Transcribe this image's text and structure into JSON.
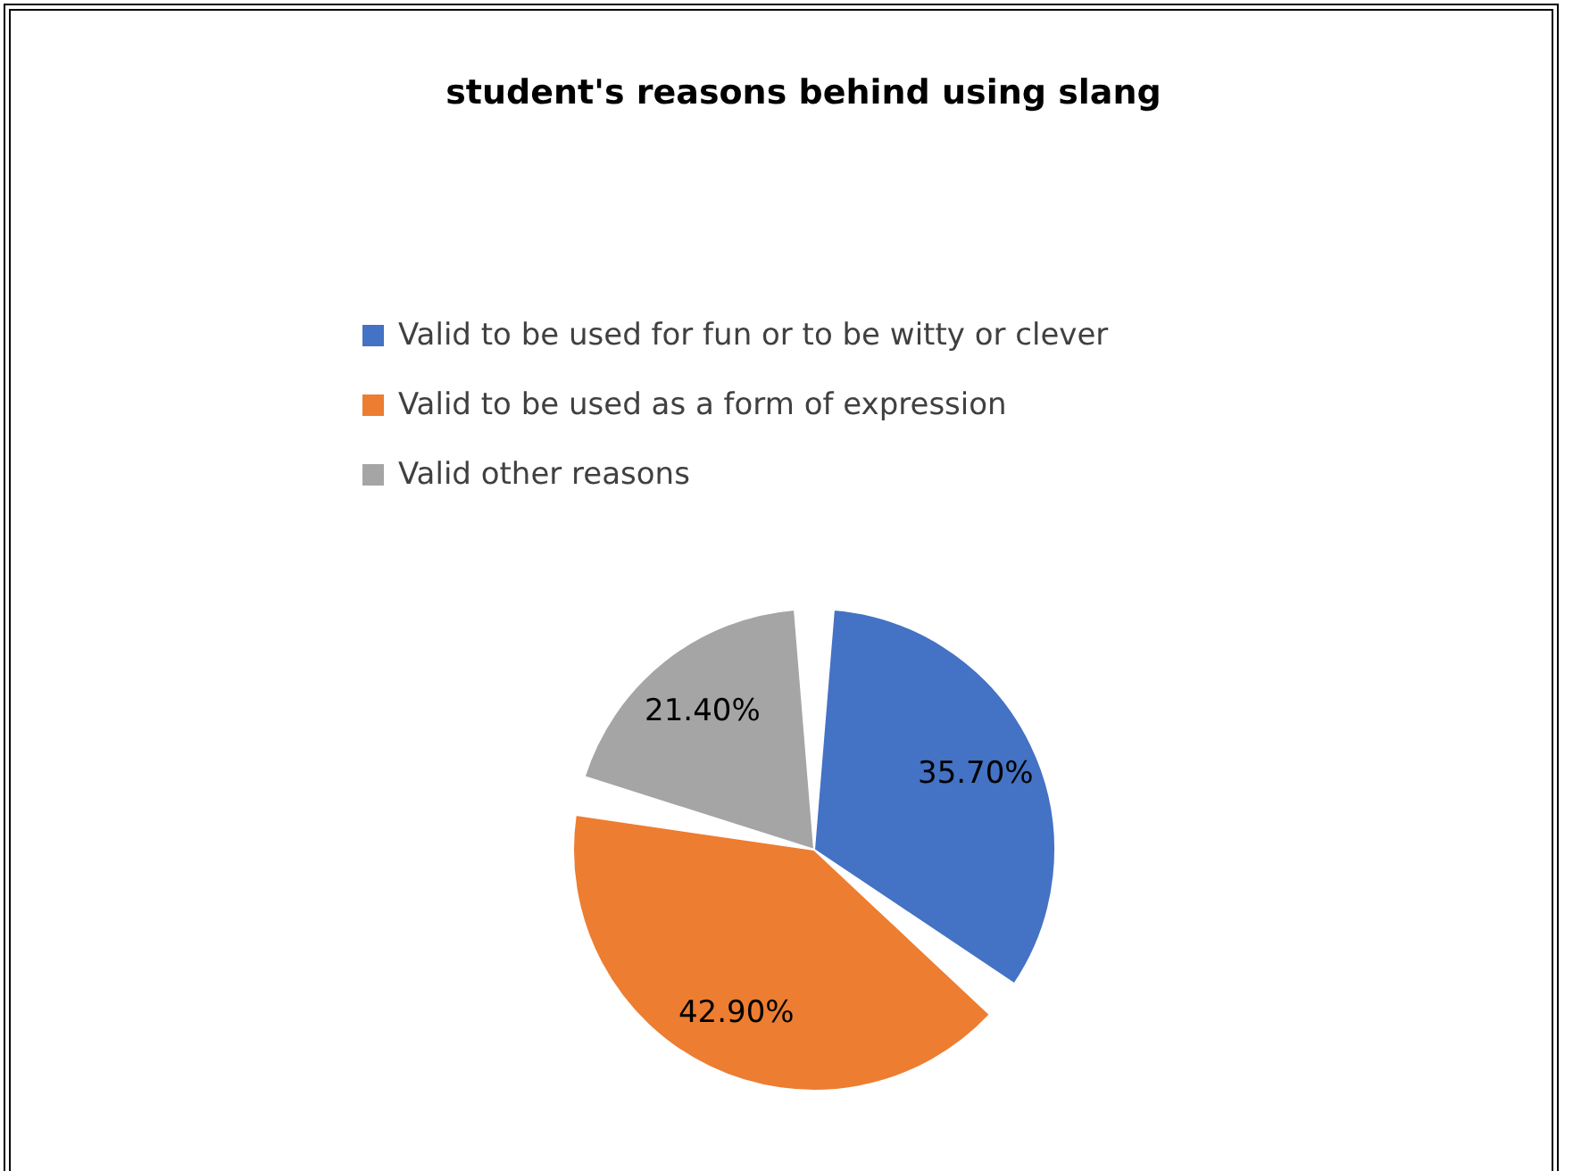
{
  "chart_data": {
    "type": "pie",
    "title": "student's reasons behind using slang",
    "categories": [
      "Valid to be used for fun or to be witty or clever",
      "Valid to be used as a form of expression",
      "Valid other reasons"
    ],
    "values": [
      35.7,
      42.9,
      21.4
    ],
    "colors": [
      "#4472c4",
      "#ed7d31",
      "#a5a5a5"
    ],
    "value_labels": [
      "35.70%",
      "42.90%",
      "21.40%"
    ],
    "legend": "top"
  }
}
